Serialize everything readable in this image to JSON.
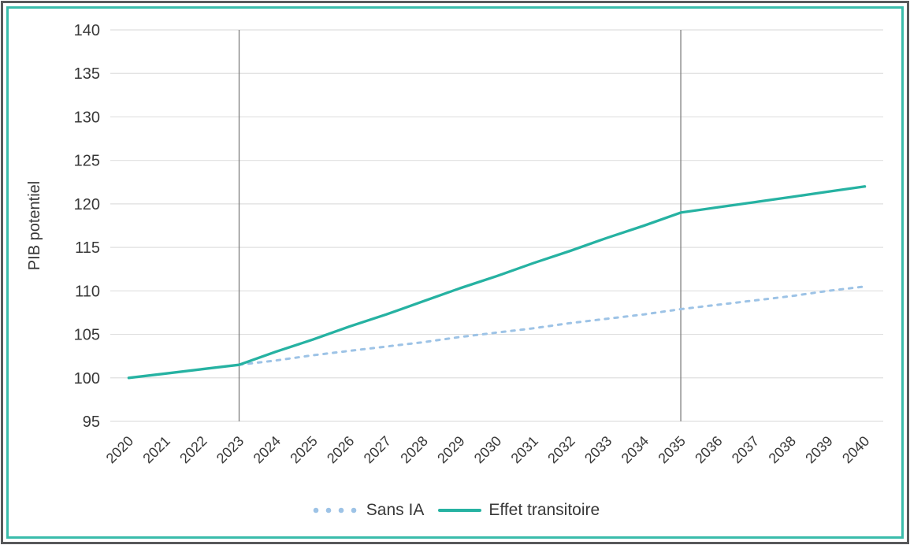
{
  "chart_data": {
    "type": "line",
    "title": "",
    "xlabel": "",
    "ylabel": "PIB potentiel",
    "ylim": [
      95,
      140
    ],
    "ytick_step": 5,
    "grid": "horizontal",
    "legend_position": "bottom",
    "categories": [
      "2020",
      "2021",
      "2022",
      "2023",
      "2024",
      "2025",
      "2026",
      "2027",
      "2028",
      "2029",
      "2030",
      "2031",
      "2032",
      "2033",
      "2034",
      "2035",
      "2036",
      "2037",
      "2038",
      "2039",
      "2040"
    ],
    "series": [
      {
        "name": "Sans IA",
        "style": "dotted",
        "color": "#9DC3E6",
        "values": [
          null,
          null,
          null,
          101.5,
          102.0,
          102.6,
          103.1,
          103.6,
          104.1,
          104.7,
          105.2,
          105.7,
          106.3,
          106.8,
          107.3,
          107.9,
          108.4,
          108.9,
          109.4,
          110.0,
          110.5
        ]
      },
      {
        "name": "Effet transitoire",
        "style": "solid",
        "color": "#26B2A2",
        "values": [
          100,
          100.5,
          101.0,
          101.5,
          103.0,
          104.4,
          105.9,
          107.3,
          108.8,
          110.3,
          111.7,
          113.2,
          114.6,
          116.1,
          117.5,
          119.0,
          119.6,
          120.2,
          120.8,
          121.4,
          122.0
        ]
      }
    ],
    "reference_lines": [
      {
        "category": "2023"
      },
      {
        "category": "2035"
      }
    ]
  },
  "frame": {
    "outer_border_color": "#58595B",
    "inner_border_color": "#3ABCAB",
    "background": "#FFFFFF"
  },
  "axis": {
    "text_color": "#383838",
    "gridline_color": "#DFDFDF",
    "reference_line_color": "#7F7F7F"
  }
}
